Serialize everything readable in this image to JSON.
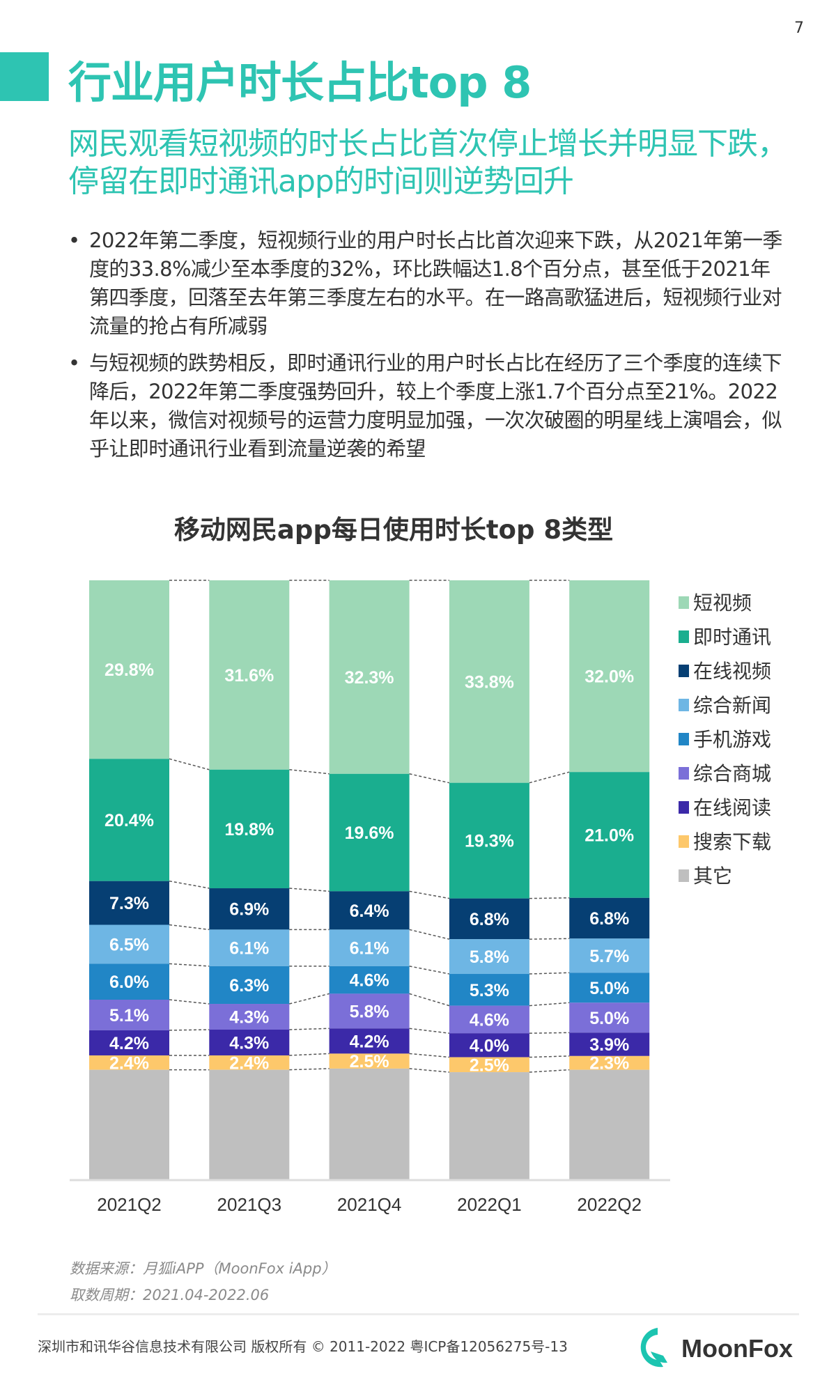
{
  "page_number": "7",
  "title": "行业用户时长占比top 8",
  "subtitle": "网民观看短视频的时长占比首次停止增长并明显下跌，停留在即时通讯app的时间则逆势回升",
  "bullets": [
    "2022年第二季度，短视频行业的用户时长占比首次迎来下跌，从2021年第一季度的33.8%减少至本季度的32%，环比跌幅达1.8个百分点，甚至低于2021年第四季度，回落至去年第三季度左右的水平。在一路高歌猛进后，短视频行业对流量的抢占有所减弱",
    "与短视频的跌势相反，即时通讯行业的用户时长占比在经历了三个季度的连续下降后，2022年第二季度强势回升，较上个季度上涨1.7个百分点至21%。2022年以来，微信对视频号的运营力度明显加强，一次次破圈的明星线上演唱会，似乎让即时通讯行业看到流量逆袭的希望"
  ],
  "chart_data": {
    "type": "bar",
    "stacked": true,
    "title": "移动网民app每日使用时长top 8类型",
    "categories": [
      "2021Q2",
      "2021Q3",
      "2021Q4",
      "2022Q1",
      "2022Q2"
    ],
    "ylim": [
      0,
      100
    ],
    "unit": "%",
    "grid": false,
    "legend_position": "right",
    "watermark": "MoonFox",
    "series": [
      {
        "name": "短视频",
        "color": "#9dd8b6",
        "values": [
          29.8,
          31.6,
          32.3,
          33.8,
          32.0
        ]
      },
      {
        "name": "即时通讯",
        "color": "#1aae8f",
        "values": [
          20.4,
          19.8,
          19.6,
          19.3,
          21.0
        ]
      },
      {
        "name": "在线视频",
        "color": "#063f73",
        "values": [
          7.3,
          6.9,
          6.4,
          6.8,
          6.8
        ]
      },
      {
        "name": "综合新闻",
        "color": "#6eb6e4",
        "values": [
          6.5,
          6.1,
          6.1,
          5.8,
          5.7
        ]
      },
      {
        "name": "手机游戏",
        "color": "#2186c6",
        "values": [
          6.0,
          6.3,
          4.6,
          5.3,
          5.0
        ]
      },
      {
        "name": "综合商城",
        "color": "#7b6fd8",
        "values": [
          5.1,
          4.3,
          5.8,
          4.6,
          5.0
        ]
      },
      {
        "name": "在线阅读",
        "color": "#3b29a8",
        "values": [
          4.2,
          4.3,
          4.2,
          4.0,
          3.9
        ]
      },
      {
        "name": "搜索下载",
        "color": "#fdc86b",
        "values": [
          2.4,
          2.4,
          2.5,
          2.5,
          2.3
        ]
      },
      {
        "name": "其它",
        "color": "#bfbfbf",
        "values": null
      }
    ]
  },
  "source": {
    "data_source": "数据来源：月狐iAPP（MoonFox iApp）",
    "period": "取数周期：2021.04-2022.06"
  },
  "footer": {
    "copyright": "深圳市和讯华谷信息技术有限公司 版权所有 © 2011-2022 粤ICP备12056275号-13",
    "logo_text": "MoonFox"
  },
  "colors": {
    "accent": "#2ec4b2"
  }
}
